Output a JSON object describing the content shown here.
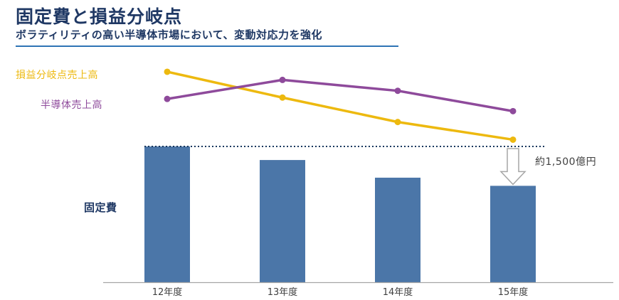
{
  "header": {
    "title": "固定費と損益分岐点",
    "subtitle": "ボラティリティの高い半導体市場において、変動対応力を強化"
  },
  "labels": {
    "breakeven": "損益分岐点売上高",
    "semiconductor": "半導体売上高",
    "fixed_cost": "固定費",
    "annotation": "約1,500億円"
  },
  "colors": {
    "title": "#1F3864",
    "accent_rule": "#2E74B5",
    "bar": "#4B76A8",
    "breakeven_line": "#EDB90F",
    "semiconductor_line": "#8E4A9B",
    "dotted": "#17375E",
    "axis": "#A6A6A6",
    "arrow_outline": "#A6A6A6",
    "annotation_text": "#404040",
    "tick_text": "#404040"
  },
  "chart_data": {
    "type": "bar+line combo",
    "title": "固定費と損益分岐点",
    "categories": [
      "12年度",
      "13年度",
      "14年度",
      "15年度"
    ],
    "series": [
      {
        "name": "固定費",
        "type": "bar",
        "color_key": "bar",
        "values": [
          100,
          90,
          77,
          71
        ]
      },
      {
        "name": "損益分岐点売上高",
        "type": "line",
        "color_key": "breakeven_line",
        "values": [
          155,
          136,
          118,
          105
        ]
      },
      {
        "name": "半導体売上高",
        "type": "line",
        "color_key": "semiconductor_line",
        "values": [
          135,
          149,
          141,
          126
        ]
      }
    ],
    "ylim": [
      0,
      170
    ],
    "value_unit": "index, 12年度 fixed-cost bar = 100 (no numeric axis shown)",
    "grid": false,
    "legend_position": "left",
    "annotations": [
      {
        "text": "約1,500億円",
        "meaning": "fixed-cost reduction from 12年度 level to 15年度 bar, shown with dotted reference line and hollow down arrow"
      }
    ]
  }
}
